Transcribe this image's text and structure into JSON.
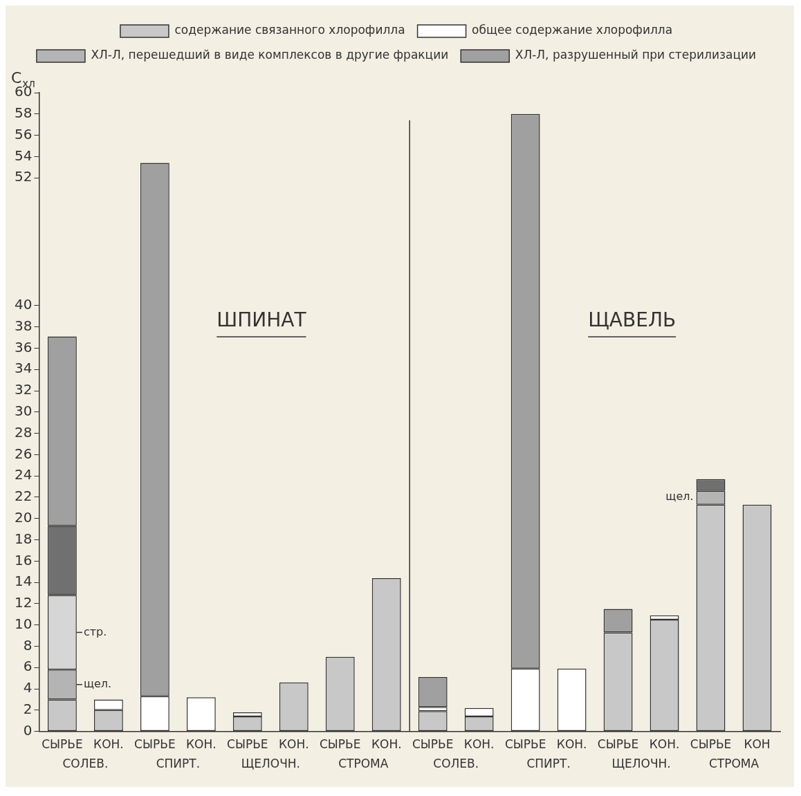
{
  "chart_data": {
    "type": "bar",
    "stacked": true,
    "legend": "top",
    "ylabel": "C$_{хл}$",
    "categories": [
      "СЫРЬЕ",
      "КОН.",
      "СЫРЬЕ",
      "КОН.",
      "СЫРЬЕ",
      "КОН.",
      "СЫРЬЕ",
      "КОН.",
      "СЫРЬЕ",
      "КОН.",
      "СЫРЬЕ",
      "КОН.",
      "СЫРЬЕ",
      "КОН.",
      "СЫРЬЕ",
      "КОН"
    ],
    "series": [
      {
        "name": "содержание связанного хлорофилла",
        "color": "#c8c8c8",
        "values": [
          3,
          2,
          null,
          null,
          1.4,
          4.6,
          7.0,
          14.4,
          1.9,
          1.4,
          null,
          null,
          9.3,
          10.5,
          21.3,
          21.3
        ]
      },
      {
        "name": "общее содержание хлорофилла",
        "color": "#ffffff",
        "values": [
          null,
          1,
          3.3,
          3.2,
          0.4,
          null,
          null,
          null,
          0.4,
          0.8,
          5.9,
          5.9,
          null,
          0.4,
          null,
          null
        ]
      },
      {
        "name": "ХЛ-Л, перешедший в виде комплексов в другие фракции",
        "color": "#b4b4b4",
        "values": [
          2.8,
          null,
          null,
          null,
          null,
          null,
          null,
          null,
          null,
          null,
          null,
          null,
          null,
          null,
          1.3,
          null
        ]
      },
      {
        "color": "#d6d6d6",
        "values": [
          7.0,
          null,
          null,
          null,
          null,
          null,
          null,
          null,
          null,
          null,
          null,
          null,
          null,
          null,
          null,
          null
        ]
      },
      {
        "color": "#707070",
        "values": [
          6.5,
          null,
          null,
          null,
          null,
          null,
          null,
          null,
          null,
          null,
          null,
          null,
          null,
          null,
          1.1,
          null
        ]
      },
      {
        "name": "ХЛ-Л, разрушенный при стерилизации",
        "color": "#a0a0a0",
        "values": [
          17.8,
          null,
          50.1,
          null,
          null,
          null,
          null,
          null,
          2.8,
          null,
          52.1,
          null,
          2.2,
          null,
          null,
          null
        ]
      }
    ],
    "ylim": [
      0,
      60
    ],
    "yticks": [
      0,
      2,
      4,
      6,
      8,
      10,
      12,
      14,
      16,
      18,
      20,
      22,
      24,
      26,
      28,
      30,
      32,
      34,
      36,
      38,
      40,
      52,
      54,
      56,
      58,
      60
    ],
    "annotations": [
      "ШПИНАТ",
      "ЩАВЕЛЬ",
      "СОЛЕВ.",
      "СПИРТ.",
      "ЩЕЛОЧН.",
      "СТРОМА",
      "СОЛЕВ.",
      "СПИРТ.",
      "ЩЕЛОЧН.",
      "СТРОМА",
      "стр.",
      "щел.",
      "щел."
    ]
  }
}
